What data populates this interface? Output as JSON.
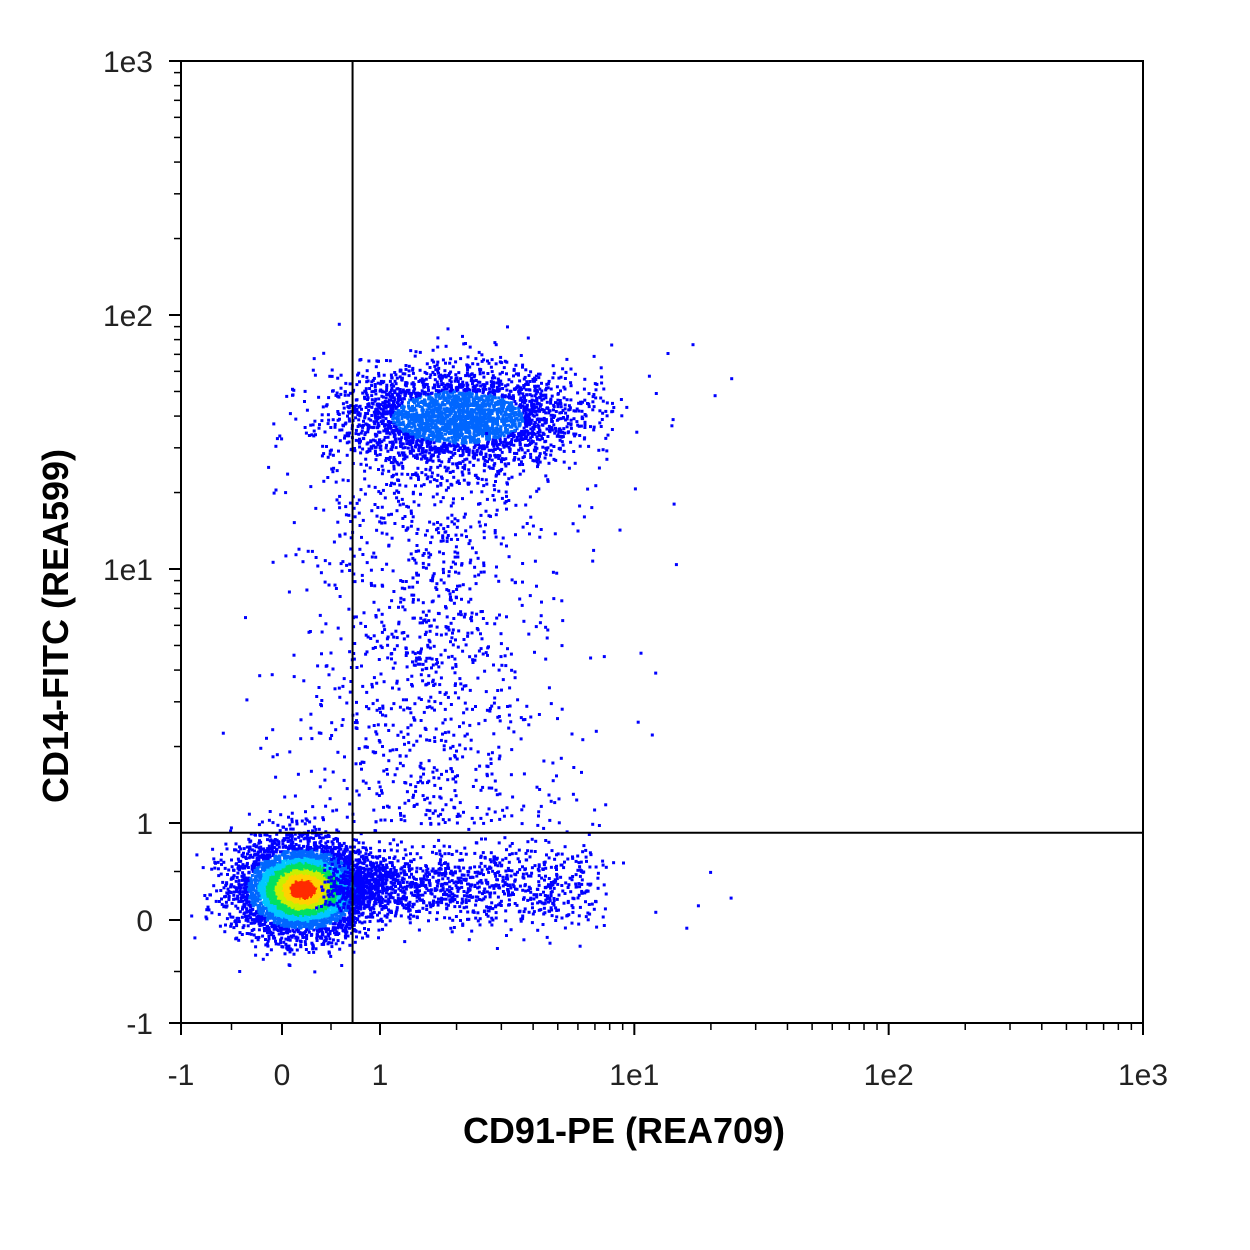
{
  "chart_data": {
    "type": "scatter",
    "style": "flow-cytometry density dot plot (biexponential axes)",
    "xlabel": "CD91-PE (REA709)",
    "ylabel": "CD14-FITC (REA599)",
    "x_scale": "biexponential",
    "y_scale": "biexponential",
    "xlim": [
      -1,
      1000
    ],
    "ylim": [
      -1,
      1000
    ],
    "x_ticks": [
      {
        "value": -1,
        "label": "-1"
      },
      {
        "value": 0,
        "label": "0"
      },
      {
        "value": 1,
        "label": "1"
      },
      {
        "value": 10,
        "label": "1e1"
      },
      {
        "value": 100,
        "label": "1e2"
      },
      {
        "value": 1000,
        "label": "1e3"
      }
    ],
    "y_ticks": [
      {
        "value": -1,
        "label": "-1"
      },
      {
        "value": 0,
        "label": "0"
      },
      {
        "value": 1,
        "label": "1"
      },
      {
        "value": 10,
        "label": "1e1"
      },
      {
        "value": 100,
        "label": "1e2"
      },
      {
        "value": 1000,
        "label": "1e3"
      }
    ],
    "quadrant_gate": {
      "x": 0.72,
      "y": 0.9
    },
    "density_colors": [
      "#0000ff",
      "#0066ff",
      "#00c8ff",
      "#00e060",
      "#c8f000",
      "#ffd200",
      "#ff2a00"
    ],
    "populations": [
      {
        "center_x": 0.2,
        "center_y": 0.33,
        "density": "highest"
      },
      {
        "center_x": 2.0,
        "center_y": 40,
        "density": "medium"
      },
      {
        "center_x": 1.5,
        "center_y": 3,
        "density": "low"
      }
    ],
    "grid": false,
    "legend": "none"
  }
}
